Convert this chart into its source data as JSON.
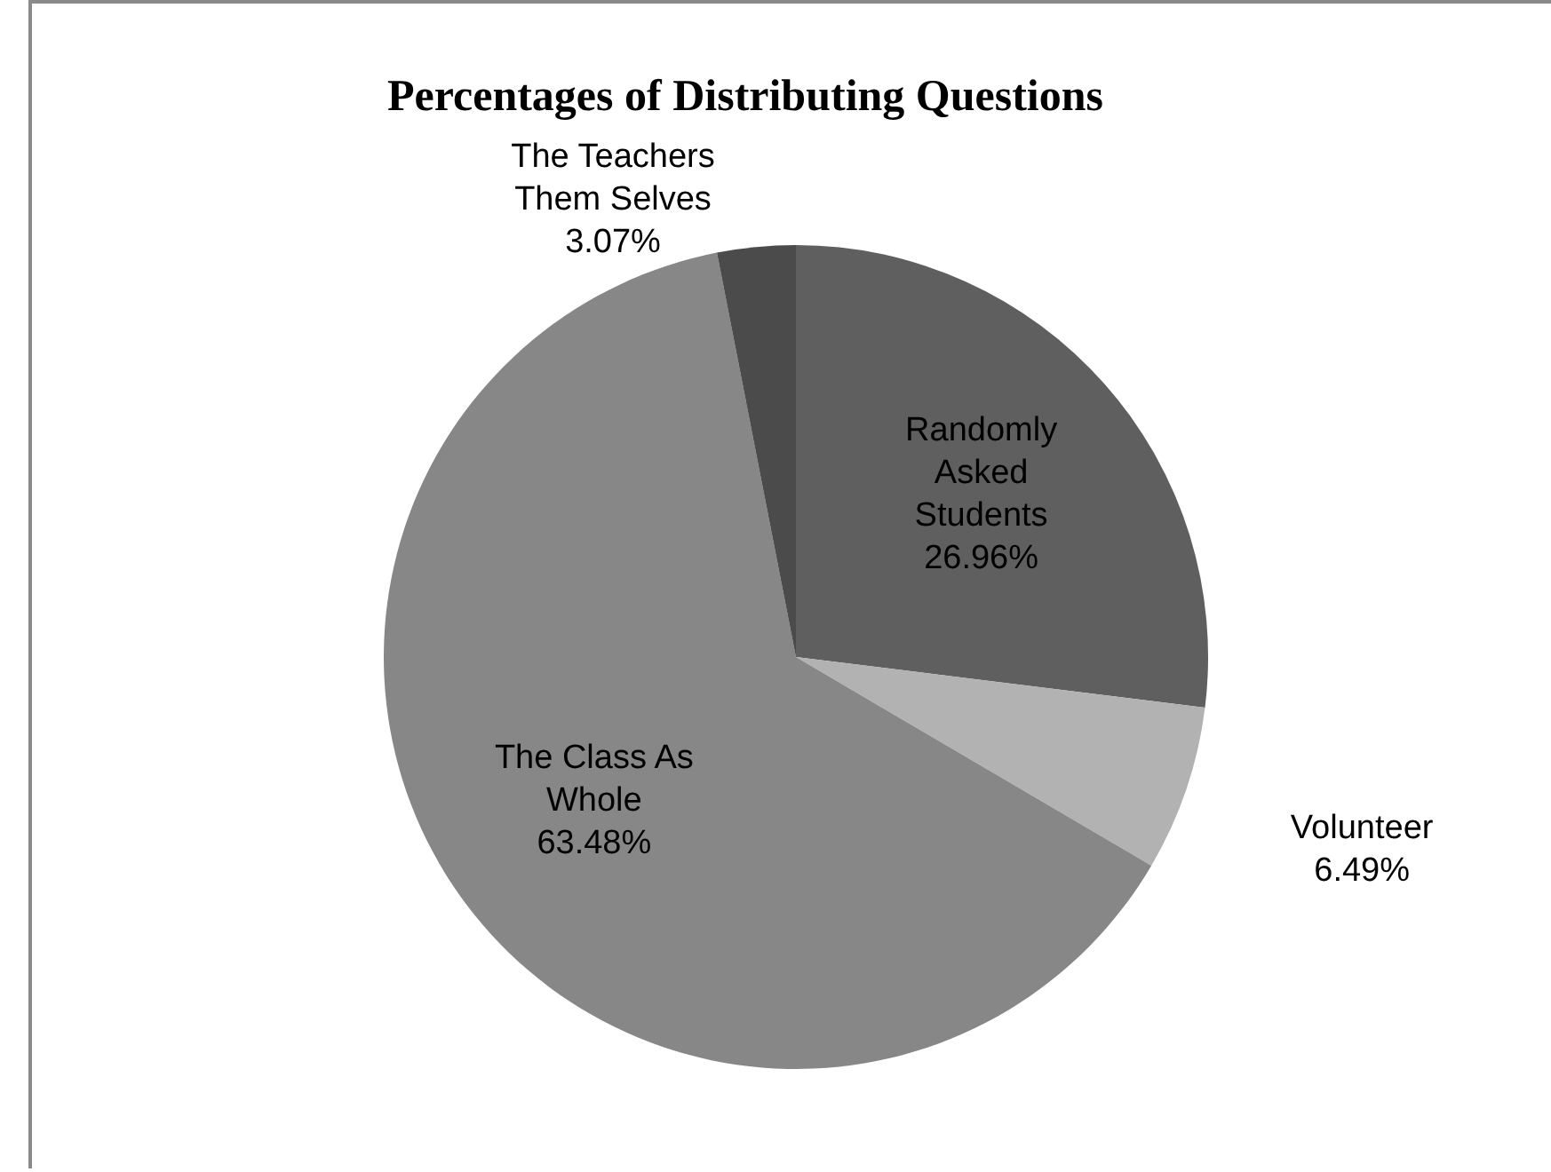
{
  "chart_data": {
    "type": "pie",
    "title": "Percentages of Distributing Questions",
    "categories": [
      "Randomly Asked Students",
      "Volunteer",
      "The Class As Whole",
      "The Teachers Them Selves"
    ],
    "values": [
      26.96,
      6.49,
      63.48,
      3.07
    ],
    "value_labels": [
      "26.96%",
      "6.49%",
      "63.48%",
      "3.07%"
    ],
    "colors": [
      "#5f5f5f",
      "#b2b2b2",
      "#878787",
      "#4b4b4b"
    ]
  }
}
